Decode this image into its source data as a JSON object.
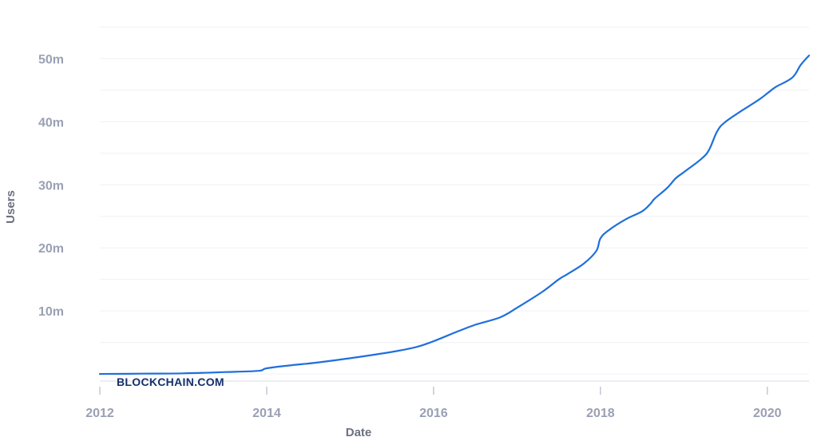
{
  "chart_data": {
    "type": "line",
    "xlabel": "Date",
    "ylabel": "Users",
    "x_ticks": [
      "2012",
      "2014",
      "2016",
      "2018",
      "2020"
    ],
    "y_ticks": [
      "10m",
      "20m",
      "30m",
      "40m",
      "50m"
    ],
    "xlim": [
      2012.0,
      2020.5
    ],
    "ylim": [
      -1.0,
      55.5
    ],
    "y_tick_values": [
      10,
      20,
      30,
      40,
      50
    ],
    "x_tick_values": [
      2012,
      2014,
      2016,
      2018,
      2020
    ],
    "grid": true,
    "line_color": "#1f6fdb",
    "grid_color": "#eef0f4",
    "watermark": "BLOCKCHAIN.COM",
    "series": [
      {
        "x": [
          2012.0,
          2012.5,
          2013.0,
          2013.5,
          2013.9,
          2014.0,
          2014.3,
          2014.6,
          2015.0,
          2015.5,
          2015.8,
          2016.0,
          2016.3,
          2016.5,
          2016.8,
          2017.0,
          2017.3,
          2017.5,
          2017.6,
          2017.8,
          2017.95,
          2018.0,
          2018.1,
          2018.3,
          2018.5,
          2018.6,
          2018.65,
          2018.8,
          2018.9,
          2019.0,
          2019.2,
          2019.3,
          2019.4,
          2019.5,
          2019.7,
          2019.9,
          2020.0,
          2020.1,
          2020.3,
          2020.4,
          2020.5
        ],
        "y": [
          0.0,
          0.05,
          0.1,
          0.3,
          0.5,
          0.9,
          1.4,
          1.8,
          2.5,
          3.5,
          4.3,
          5.2,
          6.8,
          7.8,
          9.0,
          10.5,
          13.0,
          15.0,
          15.8,
          17.5,
          19.5,
          21.5,
          22.8,
          24.5,
          25.8,
          27.0,
          27.8,
          29.5,
          31.0,
          32.0,
          34.0,
          35.5,
          38.5,
          40.0,
          41.8,
          43.5,
          44.5,
          45.5,
          47.0,
          49.0,
          50.5
        ]
      }
    ]
  }
}
